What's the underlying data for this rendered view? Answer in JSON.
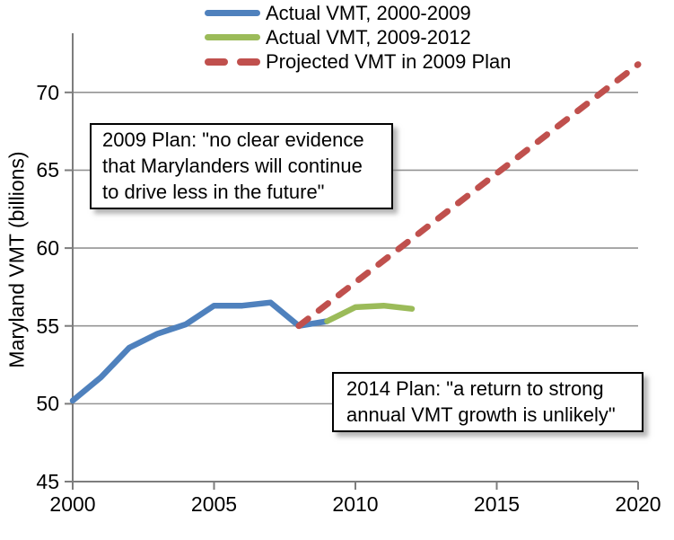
{
  "legend": {
    "items": [
      {
        "label": "Actual VMT, 2000-2009",
        "color": "#4F81BD",
        "dashed": false
      },
      {
        "label": "Actual VMT, 2009-2012",
        "color": "#9BBB59",
        "dashed": false
      },
      {
        "label": "Projected VMT in 2009 Plan",
        "color": "#C0504D",
        "dashed": true
      }
    ]
  },
  "annotations": {
    "plan2009": {
      "lines": [
        "2009 Plan: \"no clear evidence",
        "that Marylanders will continue",
        "to drive less in the future\""
      ]
    },
    "plan2014": {
      "lines": [
        "2014 Plan: \"a return to strong",
        "annual VMT growth is unlikely\""
      ]
    }
  },
  "chart_data": {
    "type": "line",
    "title": "",
    "xlabel": "",
    "ylabel": "Maryland VMT (billions)",
    "xlim": [
      2000,
      2020
    ],
    "ylim": [
      45,
      73.8
    ],
    "x_ticks": [
      2000,
      2005,
      2010,
      2015,
      2020
    ],
    "y_ticks": [
      45,
      50,
      55,
      60,
      65,
      70
    ],
    "grid": "horizontal",
    "legend_position": "top",
    "axis_color": "#7d7d7d",
    "gridline_color": "#949494",
    "series": [
      {
        "name": "Actual VMT, 2000-2009",
        "color": "#4F81BD",
        "line_style": "solid",
        "x": [
          2000,
          2001,
          2002,
          2003,
          2004,
          2005,
          2006,
          2007,
          2008,
          2009
        ],
        "values": [
          50.2,
          51.7,
          53.6,
          54.5,
          55.1,
          56.3,
          56.3,
          56.5,
          55.0,
          55.3
        ]
      },
      {
        "name": "Actual VMT, 2009-2012",
        "color": "#9BBB59",
        "line_style": "solid",
        "x": [
          2009,
          2010,
          2011,
          2012
        ],
        "values": [
          55.3,
          56.2,
          56.3,
          56.1
        ]
      },
      {
        "name": "Projected VMT in 2009 Plan",
        "color": "#C0504D",
        "line_style": "dashed",
        "x": [
          2008,
          2020
        ],
        "values": [
          55.0,
          71.8
        ]
      }
    ],
    "annotations": [
      {
        "text": "2009 Plan: \"no clear evidence that Marylanders will continue to drive less in the future\""
      },
      {
        "text": "2014 Plan: \"a return to strong annual VMT growth is unlikely\""
      }
    ]
  }
}
